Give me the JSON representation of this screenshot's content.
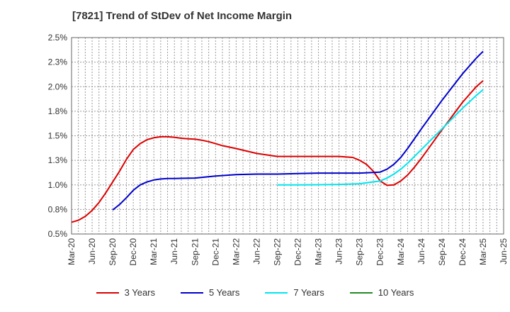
{
  "title": "[7821]  Trend of StDev of Net Income Margin",
  "chart_data": {
    "type": "line",
    "title": "[7821]  Trend of StDev of Net Income Margin",
    "xlabel": "",
    "ylabel": "",
    "x_tick_labels": [
      "Mar-20",
      "Jun-20",
      "Sep-20",
      "Dec-20",
      "Mar-21",
      "Jun-21",
      "Sep-21",
      "Dec-21",
      "Mar-22",
      "Jun-22",
      "Sep-22",
      "Dec-22",
      "Mar-23",
      "Jun-23",
      "Sep-23",
      "Dec-23",
      "Mar-24",
      "Jun-24",
      "Sep-24",
      "Dec-24",
      "Mar-25",
      "Jun-25"
    ],
    "y_tick_labels": [
      "0.5%",
      "0.8%",
      "1.0%",
      "1.3%",
      "1.5%",
      "1.8%",
      "2.0%",
      "2.3%",
      "2.5%"
    ],
    "ylim": [
      0.5,
      2.5
    ],
    "grid": true,
    "legend_position": "bottom",
    "series": [
      {
        "name": "3 Years",
        "color": "#dd0000",
        "x": [
          "2020-03",
          "2020-04",
          "2020-05",
          "2020-06",
          "2020-07",
          "2020-08",
          "2020-09",
          "2020-10",
          "2020-11",
          "2020-12",
          "2021-01",
          "2021-02",
          "2021-03",
          "2021-04",
          "2021-05",
          "2021-06",
          "2021-07",
          "2021-08",
          "2021-09",
          "2021-10",
          "2021-11",
          "2021-12",
          "2022-01",
          "2022-03",
          "2022-06",
          "2022-09",
          "2022-12",
          "2023-03",
          "2023-06",
          "2023-08",
          "2023-09",
          "2023-10",
          "2023-11",
          "2023-12",
          "2024-01",
          "2024-02",
          "2024-03",
          "2024-04",
          "2024-05",
          "2024-06",
          "2024-09",
          "2024-12",
          "2025-02",
          "2025-03"
        ],
        "values": [
          0.62,
          0.64,
          0.68,
          0.74,
          0.82,
          0.92,
          1.03,
          1.14,
          1.26,
          1.36,
          1.42,
          1.46,
          1.48,
          1.49,
          1.49,
          1.485,
          1.475,
          1.47,
          1.465,
          1.455,
          1.44,
          1.42,
          1.4,
          1.37,
          1.32,
          1.29,
          1.29,
          1.29,
          1.29,
          1.28,
          1.25,
          1.21,
          1.14,
          1.04,
          0.995,
          1.0,
          1.04,
          1.1,
          1.18,
          1.27,
          1.56,
          1.84,
          2.0,
          2.06
        ]
      },
      {
        "name": "5 Years",
        "color": "#0000cc",
        "x": [
          "2020-09",
          "2020-10",
          "2020-11",
          "2020-12",
          "2021-01",
          "2021-02",
          "2021-03",
          "2021-04",
          "2021-05",
          "2021-06",
          "2021-09",
          "2021-12",
          "2022-03",
          "2022-06",
          "2022-09",
          "2022-12",
          "2023-03",
          "2023-06",
          "2023-09",
          "2023-12",
          "2024-01",
          "2024-02",
          "2024-03",
          "2024-04",
          "2024-06",
          "2024-09",
          "2024-12",
          "2025-02",
          "2025-03"
        ],
        "values": [
          0.745,
          0.8,
          0.87,
          0.945,
          1.0,
          1.03,
          1.05,
          1.06,
          1.065,
          1.065,
          1.07,
          1.09,
          1.105,
          1.11,
          1.11,
          1.115,
          1.12,
          1.12,
          1.12,
          1.13,
          1.16,
          1.21,
          1.28,
          1.37,
          1.57,
          1.86,
          2.13,
          2.29,
          2.36
        ]
      },
      {
        "name": "7 Years",
        "color": "#00e5ee",
        "x": [
          "2022-09",
          "2022-12",
          "2023-03",
          "2023-06",
          "2023-09",
          "2023-12",
          "2024-01",
          "2024-02",
          "2024-03",
          "2024-04",
          "2024-06",
          "2024-09",
          "2024-12",
          "2025-02",
          "2025-03"
        ],
        "values": [
          1.0,
          1.0,
          1.002,
          1.005,
          1.012,
          1.04,
          1.07,
          1.11,
          1.16,
          1.22,
          1.36,
          1.57,
          1.78,
          1.91,
          1.97
        ]
      },
      {
        "name": "10 Years",
        "color": "#228b22",
        "x": [],
        "values": []
      }
    ]
  }
}
